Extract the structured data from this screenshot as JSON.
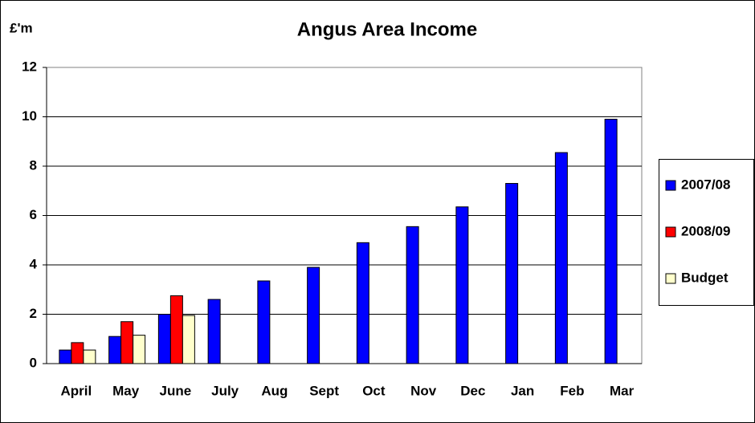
{
  "chart_data": {
    "type": "bar",
    "title": "Angus Area Income",
    "y_label": "£'m",
    "categories": [
      "April",
      "May",
      "June",
      "July",
      "Aug",
      "Sept",
      "Oct",
      "Nov",
      "Dec",
      "Jan",
      "Feb",
      "Mar"
    ],
    "series": [
      {
        "name": "2007/08",
        "color": "#0000ff",
        "values": [
          0.55,
          1.1,
          2.0,
          2.6,
          3.35,
          3.9,
          4.9,
          5.55,
          6.35,
          7.3,
          8.55,
          9.9
        ]
      },
      {
        "name": "2008/09",
        "color": "#ff0000",
        "values": [
          0.85,
          1.7,
          2.75,
          null,
          null,
          null,
          null,
          null,
          null,
          null,
          null,
          null
        ]
      },
      {
        "name": "Budget",
        "color": "#ffffcc",
        "values": [
          0.55,
          1.15,
          1.95,
          null,
          null,
          null,
          null,
          null,
          null,
          null,
          null,
          null
        ]
      }
    ],
    "ylim": [
      0,
      12
    ],
    "yticks": [
      0,
      2,
      4,
      6,
      8,
      10,
      12
    ],
    "grid": true,
    "legend": "right"
  }
}
